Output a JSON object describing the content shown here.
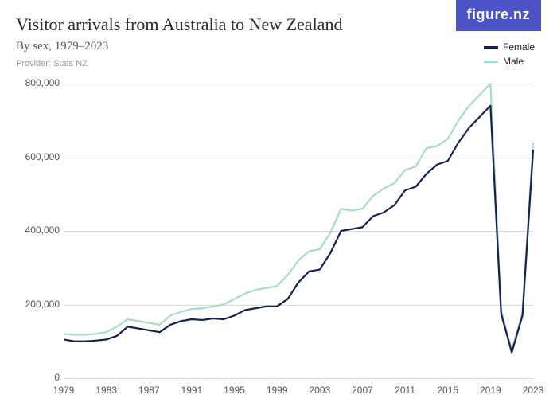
{
  "logo_text": "figure.nz",
  "logo_bg": "#4b53c6",
  "title": "Visitor arrivals from Australia to New Zealand",
  "subtitle": "By sex, 1979–2023",
  "provider": "Provider: Stats NZ",
  "chart": {
    "type": "line",
    "background_color": "#ffffff",
    "grid_color": "#d9d9d9",
    "axis_font_size": 12,
    "line_width": 2.2,
    "x": {
      "min": 1979,
      "max": 2023,
      "ticks": [
        1979,
        1983,
        1987,
        1991,
        1995,
        1999,
        2003,
        2007,
        2011,
        2015,
        2019,
        2023
      ]
    },
    "y": {
      "min": 0,
      "max": 800000,
      "ticks": [
        0,
        200000,
        400000,
        600000,
        800000
      ],
      "tick_labels": [
        "0",
        "200,000",
        "400,000",
        "600,000",
        "800,000"
      ]
    },
    "series": [
      {
        "name": "Female",
        "color": "#16214d",
        "years": [
          1979,
          1980,
          1981,
          1982,
          1983,
          1984,
          1985,
          1986,
          1987,
          1988,
          1989,
          1990,
          1991,
          1992,
          1993,
          1994,
          1995,
          1996,
          1997,
          1998,
          1999,
          2000,
          2001,
          2002,
          2003,
          2004,
          2005,
          2006,
          2007,
          2008,
          2009,
          2010,
          2011,
          2012,
          2013,
          2014,
          2015,
          2016,
          2017,
          2018,
          2019,
          2020,
          2021,
          2022,
          2023
        ],
        "values": [
          105000,
          100000,
          100000,
          102000,
          105000,
          115000,
          140000,
          135000,
          130000,
          125000,
          145000,
          155000,
          160000,
          158000,
          162000,
          160000,
          170000,
          185000,
          190000,
          195000,
          195000,
          215000,
          260000,
          290000,
          295000,
          340000,
          400000,
          405000,
          410000,
          440000,
          450000,
          470000,
          510000,
          520000,
          555000,
          580000,
          590000,
          640000,
          680000,
          710000,
          740000,
          175000,
          70000,
          170000,
          620000
        ]
      },
      {
        "name": "Male",
        "color": "#a7dcc5",
        "years": [
          1979,
          1980,
          1981,
          1982,
          1983,
          1984,
          1985,
          1986,
          1987,
          1988,
          1989,
          1990,
          1991,
          1992,
          1993,
          1994,
          1995,
          1996,
          1997,
          1998,
          1999,
          2000,
          2001,
          2002,
          2003,
          2004,
          2005,
          2006,
          2007,
          2008,
          2009,
          2010,
          2011,
          2012,
          2013,
          2014,
          2015,
          2016,
          2017,
          2018,
          2019,
          2020,
          2021,
          2022,
          2023
        ],
        "values": [
          120000,
          118000,
          118000,
          120000,
          125000,
          140000,
          160000,
          155000,
          150000,
          145000,
          170000,
          180000,
          188000,
          190000,
          195000,
          200000,
          215000,
          230000,
          240000,
          245000,
          250000,
          280000,
          320000,
          345000,
          350000,
          395000,
          460000,
          455000,
          460000,
          495000,
          515000,
          530000,
          565000,
          575000,
          625000,
          630000,
          650000,
          700000,
          740000,
          770000,
          800000,
          185000,
          75000,
          180000,
          640000
        ]
      }
    ]
  },
  "legend": [
    {
      "label": "Female",
      "color": "#16214d"
    },
    {
      "label": "Male",
      "color": "#a7dcc5"
    }
  ]
}
